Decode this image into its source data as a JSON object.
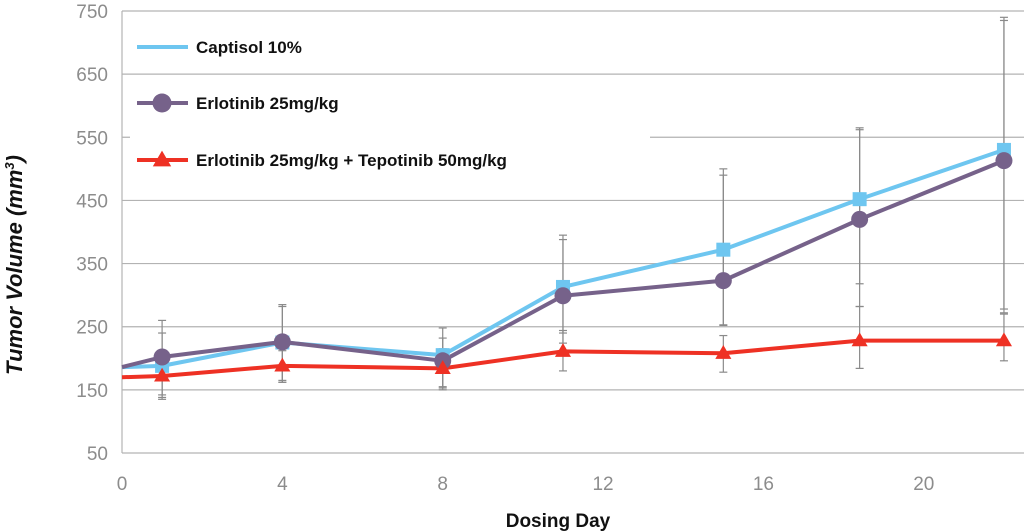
{
  "chart_data": {
    "type": "line",
    "xlabel": "Dosing Day",
    "ylabel": "Tumor Volume (mm",
    "ylabel_sup": "3",
    "ylabel_close": ")",
    "xlim": [
      0,
      22.5
    ],
    "ylim": [
      50,
      750
    ],
    "xticks": [
      0,
      4,
      8,
      12,
      16,
      20
    ],
    "yticks": [
      50,
      150,
      250,
      350,
      450,
      550,
      650,
      750
    ],
    "grid": "horizontal",
    "legend_position": "top-left",
    "series": [
      {
        "name": "Captisol 10%",
        "color": "#6ec6f0",
        "marker": "square",
        "x": [
          0,
          1,
          4,
          8,
          11,
          15,
          18.4,
          22
        ],
        "y": [
          186,
          188,
          225,
          205,
          313,
          372,
          452,
          530
        ],
        "err_x": [
          1,
          4,
          8,
          11,
          15,
          18.4,
          22
        ],
        "err_low": [
          138,
          162,
          155,
          240,
          253,
          318,
          278
        ],
        "err_high": [
          240,
          282,
          248,
          388,
          490,
          562,
          740
        ]
      },
      {
        "name": "Erlotinib 25mg/kg",
        "color": "#76628a",
        "marker": "circle",
        "x": [
          0,
          1,
          4,
          8,
          11,
          15,
          18.4,
          22
        ],
        "y": [
          186,
          202,
          226,
          196,
          299,
          323,
          420,
          513
        ],
        "err_x": [
          1,
          4,
          8,
          11,
          15,
          18.4,
          22
        ],
        "err_low": [
          142,
          165,
          150,
          224,
          252,
          282,
          272
        ],
        "err_high": [
          260,
          285,
          232,
          395,
          500,
          565,
          735
        ]
      },
      {
        "name": "Erlotinib 25mg/kg + Tepotinib 50mg/kg",
        "color": "#ee3124",
        "marker": "triangle",
        "x": [
          0,
          1,
          4,
          8,
          11,
          15,
          18.4,
          22
        ],
        "y": [
          170,
          172,
          188,
          184,
          211,
          208,
          228,
          228
        ],
        "err_x": [
          1,
          4,
          8,
          11,
          15,
          18.4,
          22
        ],
        "err_low": [
          135,
          162,
          153,
          180,
          178,
          184,
          196
        ],
        "err_high": [
          208,
          212,
          215,
          244,
          236,
          282,
          270
        ]
      }
    ]
  }
}
